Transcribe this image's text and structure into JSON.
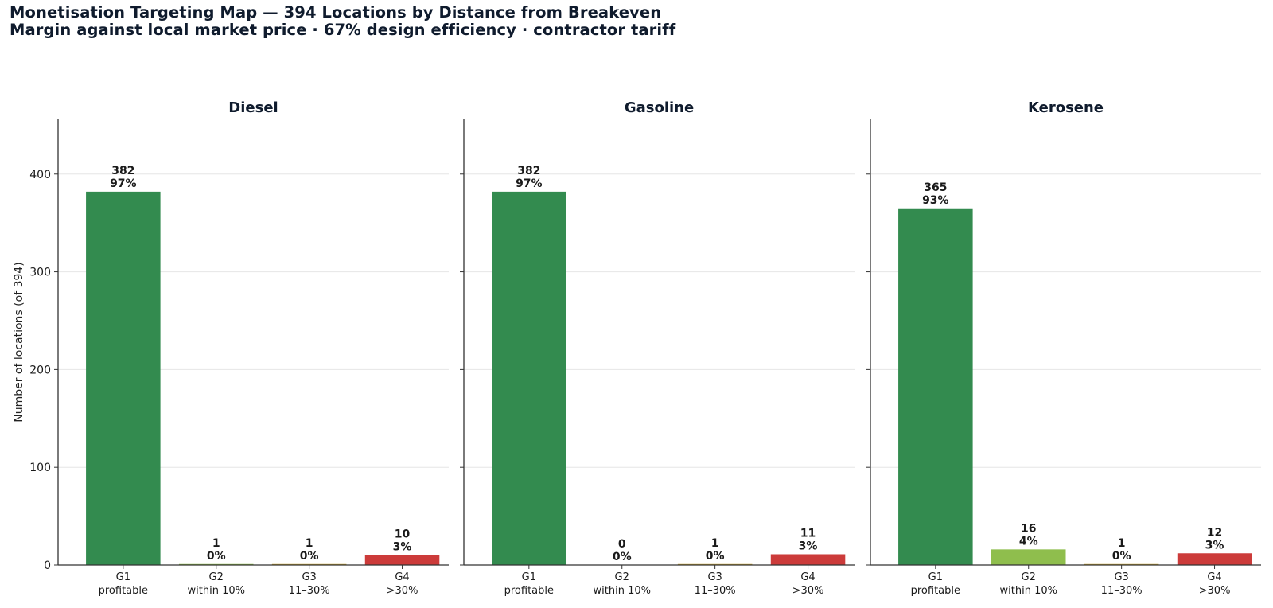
{
  "title": "Monetisation Targeting Map — 394 Locations by Distance from Breakeven",
  "subtitle": "Margin against local market price · 67% design efficiency · contractor tariff",
  "colors": {
    "text": "#0f1b2d",
    "grid": "#e6e6e6",
    "G1": "#338b4f",
    "G2": "#8fbe4d",
    "G3": "#c7a437",
    "G4": "#cc3b3a"
  },
  "chart_data": {
    "type": "bar",
    "ylabel": "Number of locations (of 394)",
    "ylim": [
      0,
      456
    ],
    "yticks": [
      0,
      100,
      200,
      300,
      400
    ],
    "grid": true,
    "categories": [
      {
        "code": "G1",
        "desc": "profitable"
      },
      {
        "code": "G2",
        "desc": "within 10%"
      },
      {
        "code": "G3",
        "desc": "11–30%"
      },
      {
        "code": "G4",
        "desc": ">30%"
      }
    ],
    "panels": [
      {
        "title": "Diesel",
        "values": [
          382,
          1,
          1,
          10
        ],
        "pct": [
          "97%",
          "0%",
          "0%",
          "3%"
        ]
      },
      {
        "title": "Gasoline",
        "values": [
          382,
          0,
          1,
          11
        ],
        "pct": [
          "97%",
          "0%",
          "0%",
          "3%"
        ]
      },
      {
        "title": "Kerosene",
        "values": [
          365,
          16,
          1,
          12
        ],
        "pct": [
          "93%",
          "4%",
          "0%",
          "3%"
        ]
      }
    ]
  }
}
